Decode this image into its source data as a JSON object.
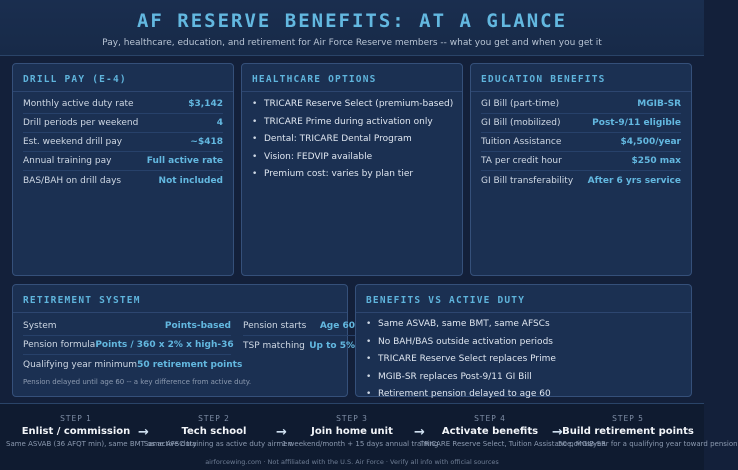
{
  "header": {
    "title": "AF RESERVE BENEFITS: AT A GLANCE",
    "subtitle": "Pay, healthcare, education, and retirement for Air Force Reserve members -- what you get and when you get it"
  },
  "drill_pay": {
    "title": "DRILL PAY (E-4)",
    "rows": [
      {
        "label": "Monthly active duty rate",
        "value": "$3,142"
      },
      {
        "label": "Drill periods per weekend",
        "value": "4"
      },
      {
        "label": "Est. weekend drill pay",
        "value": "~$418"
      },
      {
        "label": "Annual training pay",
        "value": "Full active rate"
      },
      {
        "label": "BAS/BAH on drill days",
        "value": "Not included"
      }
    ]
  },
  "healthcare": {
    "title": "HEALTHCARE OPTIONS",
    "items": [
      "TRICARE Reserve Select (premium-based)",
      "TRICARE Prime during activation only",
      "Dental: TRICARE Dental Program",
      "Vision: FEDVIP available",
      "Premium cost: varies by plan tier"
    ]
  },
  "education": {
    "title": "EDUCATION BENEFITS",
    "rows": [
      {
        "label": "GI Bill (part-time)",
        "value": "MGIB-SR"
      },
      {
        "label": "GI Bill (mobilized)",
        "value": "Post-9/11 eligible"
      },
      {
        "label": "Tuition Assistance",
        "value": "$4,500/year"
      },
      {
        "label": "TA per credit hour",
        "value": "$250 max"
      },
      {
        "label": "GI Bill transferability",
        "value": "After 6 yrs service"
      }
    ]
  },
  "retirement": {
    "title": "RETIREMENT SYSTEM",
    "left_rows": [
      {
        "label": "System",
        "value": "Points-based"
      },
      {
        "label": "Pension formula",
        "value": "Points / 360 x 2% x high-36"
      },
      {
        "label": "Qualifying year minimum",
        "value": "50 retirement points"
      }
    ],
    "right_rows": [
      {
        "label": "Pension starts",
        "value": "Age 60"
      },
      {
        "label": "TSP matching",
        "value": "Up to 5%"
      }
    ],
    "note": "Pension delayed until age 60 -- a key difference from active duty."
  },
  "vs_active": {
    "title": "BENEFITS VS ACTIVE DUTY",
    "items": [
      "Same ASVAB, same BMT, same AFSCs",
      "No BAH/BAS outside activation periods",
      "TRICARE Reserve Select replaces Prime",
      "MGIB-SR replaces Post-9/11 GI Bill",
      "Retirement pension delayed to age 60"
    ]
  },
  "steps": [
    {
      "num": "STEP 1",
      "label": "Enlist / commission",
      "desc": "Same ASVAB (36 AFQT min), same BMT as active duty"
    },
    {
      "num": "STEP 2",
      "label": "Tech school",
      "desc": "Same AFSC training as active duty airmen"
    },
    {
      "num": "STEP 3",
      "label": "Join home unit",
      "desc": "1 weekend/month + 15 days annual training"
    },
    {
      "num": "STEP 4",
      "label": "Activate benefits",
      "desc": "TRICARE Reserve Select, Tuition Assistance, MGIB-SR"
    },
    {
      "num": "STEP 5",
      "label": "Build retirement points",
      "desc": "50 points/year for a qualifying year toward pension"
    }
  ],
  "arrow_glyph": "→",
  "footer": "airforcewing.com · Not affiliated with the U.S. Air Force · Verify all info with official sources",
  "colors": {
    "accent": "#63b8e0",
    "background": "#13203a",
    "card": "#1b3052"
  }
}
